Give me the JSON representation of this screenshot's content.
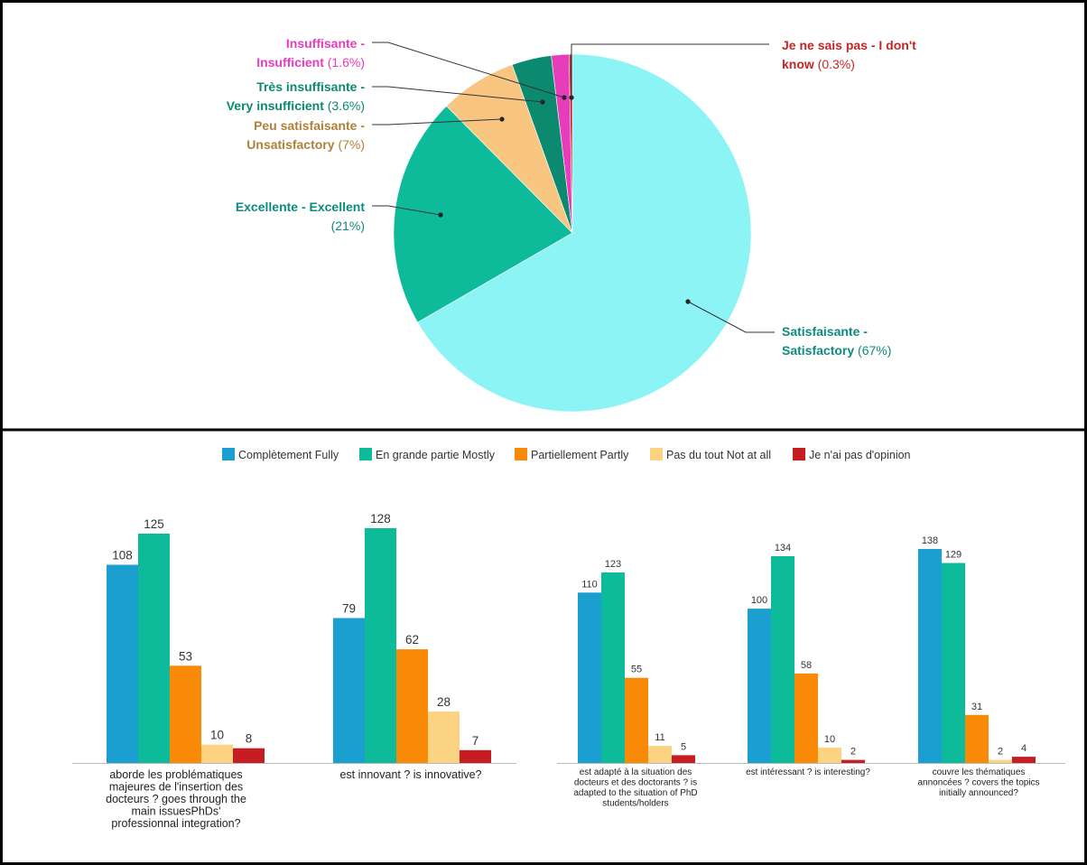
{
  "chart_data": [
    {
      "type": "pie",
      "slices": [
        {
          "label_line1": "Satisfaisante -",
          "label_line2": "Satisfactory",
          "pct_text": "(67%)",
          "value": 67,
          "color": "#8cf4f5",
          "label_color": "#0d8b80"
        },
        {
          "label_line1": "Excellente - Excellent",
          "label_line2": "",
          "pct_text": "(21%)",
          "value": 21,
          "color": "#0dbb9a",
          "label_color": "#0d8b80"
        },
        {
          "label_line1": "Peu satisfaisante -",
          "label_line2": "Unsatisfactory",
          "pct_text": "(7%)",
          "value": 7,
          "color": "#f8c680",
          "label_color": "#b0803a"
        },
        {
          "label_line1": "Très insuffisante -",
          "label_line2": "Very insufficient",
          "pct_text": "(3.6%)",
          "value": 3.6,
          "color": "#0b8a70",
          "label_color": "#0b8a70"
        },
        {
          "label_line1": "Insuffisante -",
          "label_line2": "Insufficient",
          "pct_text": "(1.6%)",
          "value": 1.6,
          "color": "#e83dbb",
          "label_color": "#e83dbb"
        },
        {
          "label_line1": "Je ne sais pas - I don't",
          "label_line2": "know",
          "pct_text": "(0.3%)",
          "value": 0.3,
          "color": "#c62525",
          "label_color": "#c62525"
        }
      ]
    },
    {
      "type": "bar",
      "series": [
        {
          "name": "Complètement Fully",
          "color": "#1a9fd0"
        },
        {
          "name": "En grande partie Mostly",
          "color": "#0dbb9a"
        },
        {
          "name": "Partiellement Partly",
          "color": "#f88a08"
        },
        {
          "name": "Pas du tout Not at all",
          "color": "#fcd283"
        },
        {
          "name": "Je n'ai pas d'opinion",
          "color": "#c51d22"
        }
      ],
      "groups": [
        {
          "label": [
            "aborde les problématiques",
            "majeures de l'insertion des",
            "docteurs ? goes through the",
            "main issuesPhDs'",
            "professionnal integration?"
          ],
          "values": [
            108,
            125,
            53,
            10,
            8
          ]
        },
        {
          "label": [
            "est innovant ? is innovative?"
          ],
          "values": [
            79,
            128,
            62,
            28,
            7
          ]
        },
        {
          "label": [
            "est adapté à la situation des",
            "docteurs et des doctorants ? is",
            "adapted to the situation of PhD",
            "students/holders"
          ],
          "values": [
            110,
            123,
            55,
            11,
            5
          ]
        },
        {
          "label": [
            "est intéressant ? is interesting?"
          ],
          "values": [
            100,
            134,
            58,
            10,
            2
          ]
        },
        {
          "label": [
            "couvre les thématiques",
            "annoncées ? covers the topics",
            "initially announced?"
          ],
          "values": [
            138,
            129,
            31,
            2,
            4
          ]
        }
      ]
    }
  ]
}
